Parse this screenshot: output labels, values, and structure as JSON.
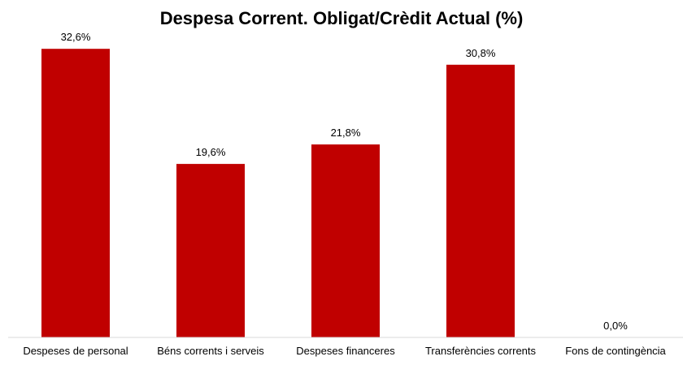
{
  "chart_data": {
    "type": "bar",
    "title": "Despesa Corrent. Obligat/Crèdit Actual (%)",
    "categories": [
      "Despeses de personal",
      "Béns corrents i serveis",
      "Despeses financeres",
      "Transferències corrents",
      "Fons de contingència"
    ],
    "values": [
      32.6,
      19.6,
      21.8,
      30.8,
      0.0
    ],
    "data_labels": [
      "32,6%",
      "19,6%",
      "21,8%",
      "30,8%",
      "0,0%"
    ],
    "ylim": [
      0,
      35
    ],
    "grid": false,
    "legend": "none",
    "bar_color": "#C00000",
    "axis_color": "#D9D9D9"
  }
}
